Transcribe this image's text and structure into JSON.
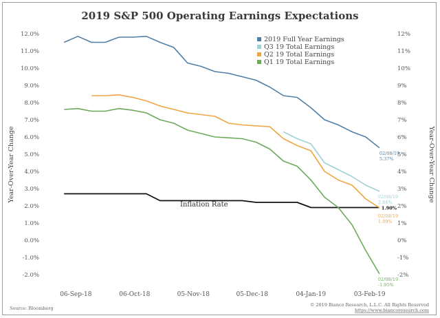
{
  "chart_data": {
    "type": "line",
    "title": "2019 S&P 500 Operating Earnings Expectations",
    "ylabel_left": "Year-Over-Year Change",
    "ylabel_right": "Year-Over-Year Change",
    "x_tick_labels": [
      "06-Sep-18",
      "06-Oct-18",
      "05-Nov-18",
      "05-Dec-18",
      "04-Jan-19",
      "03-Feb-19"
    ],
    "x_tick_dates": [
      "2018-09-06",
      "2018-10-06",
      "2018-11-05",
      "2018-12-05",
      "2019-01-04",
      "2019-02-03"
    ],
    "y_tick_labels_left": [
      "12.0%",
      "11.0%",
      "10.0%",
      "9.0%",
      "8.0%",
      "7.0%",
      "6.0%",
      "5.0%",
      "4.0%",
      "3.0%",
      "2.0%",
      "1.0%",
      "0.0%",
      "-1.0%",
      "-2.0%"
    ],
    "y_tick_labels_right": [
      "12%",
      "11%",
      "10%",
      "9%",
      "8%",
      "7%",
      "6%",
      "5%",
      "4%",
      "3%",
      "2%",
      "1%",
      "0%",
      "-1%",
      "-2%"
    ],
    "ylim": [
      -2.6,
      12.2
    ],
    "xlim": [
      "2018-08-26",
      "2019-02-14"
    ],
    "grid": false,
    "legend_position": "top-right",
    "series": [
      {
        "name": "2019 Full Year Earnings",
        "color": "#4f7fa8",
        "points": [
          [
            "2018-08-31",
            11.5
          ],
          [
            "2018-09-07",
            11.85
          ],
          [
            "2018-09-14",
            11.5
          ],
          [
            "2018-09-21",
            11.5
          ],
          [
            "2018-09-28",
            11.8
          ],
          [
            "2018-10-05",
            11.8
          ],
          [
            "2018-10-12",
            11.85
          ],
          [
            "2018-10-19",
            11.5
          ],
          [
            "2018-10-26",
            11.2
          ],
          [
            "2018-11-02",
            10.3
          ],
          [
            "2018-11-09",
            10.1
          ],
          [
            "2018-11-16",
            9.8
          ],
          [
            "2018-11-23",
            9.7
          ],
          [
            "2018-11-30",
            9.5
          ],
          [
            "2018-12-07",
            9.3
          ],
          [
            "2018-12-14",
            8.9
          ],
          [
            "2018-12-21",
            8.4
          ],
          [
            "2018-12-28",
            8.3
          ],
          [
            "2019-01-04",
            7.7
          ],
          [
            "2019-01-11",
            7.0
          ],
          [
            "2019-01-18",
            6.7
          ],
          [
            "2019-01-25",
            6.3
          ],
          [
            "2019-02-01",
            6.0
          ],
          [
            "2019-02-08",
            5.37
          ]
        ]
      },
      {
        "name": "Q3 19 Total Earnings",
        "color": "#9ed0d6",
        "points": [
          [
            "2018-12-21",
            6.3
          ],
          [
            "2018-12-28",
            5.9
          ],
          [
            "2019-01-04",
            5.6
          ],
          [
            "2019-01-11",
            4.5
          ],
          [
            "2019-01-18",
            4.1
          ],
          [
            "2019-01-25",
            3.7
          ],
          [
            "2019-02-01",
            3.2
          ],
          [
            "2019-02-08",
            2.84
          ]
        ]
      },
      {
        "name": "Q2 19 Total Earnings",
        "color": "#f0a545",
        "points": [
          [
            "2018-09-14",
            8.4
          ],
          [
            "2018-09-21",
            8.4
          ],
          [
            "2018-09-28",
            8.45
          ],
          [
            "2018-10-05",
            8.3
          ],
          [
            "2018-10-12",
            8.1
          ],
          [
            "2018-10-19",
            7.8
          ],
          [
            "2018-10-26",
            7.6
          ],
          [
            "2018-11-02",
            7.4
          ],
          [
            "2018-11-09",
            7.3
          ],
          [
            "2018-11-16",
            7.2
          ],
          [
            "2018-11-23",
            6.8
          ],
          [
            "2018-11-30",
            6.7
          ],
          [
            "2018-12-07",
            6.65
          ],
          [
            "2018-12-14",
            6.6
          ],
          [
            "2018-12-21",
            5.9
          ],
          [
            "2018-12-28",
            5.5
          ],
          [
            "2019-01-04",
            5.2
          ],
          [
            "2019-01-11",
            4.0
          ],
          [
            "2019-01-18",
            3.5
          ],
          [
            "2019-01-25",
            3.2
          ],
          [
            "2019-02-01",
            2.4
          ],
          [
            "2019-02-08",
            1.89
          ]
        ]
      },
      {
        "name": "Q1 19 Total Earnings",
        "color": "#6aab5a",
        "points": [
          [
            "2018-08-31",
            7.6
          ],
          [
            "2018-09-07",
            7.65
          ],
          [
            "2018-09-14",
            7.5
          ],
          [
            "2018-09-21",
            7.5
          ],
          [
            "2018-09-28",
            7.65
          ],
          [
            "2018-10-05",
            7.55
          ],
          [
            "2018-10-12",
            7.4
          ],
          [
            "2018-10-19",
            7.0
          ],
          [
            "2018-10-26",
            6.8
          ],
          [
            "2018-11-02",
            6.4
          ],
          [
            "2018-11-09",
            6.2
          ],
          [
            "2018-11-16",
            6.0
          ],
          [
            "2018-11-23",
            5.95
          ],
          [
            "2018-11-30",
            5.9
          ],
          [
            "2018-12-07",
            5.7
          ],
          [
            "2018-12-14",
            5.3
          ],
          [
            "2018-12-21",
            4.6
          ],
          [
            "2018-12-28",
            4.3
          ],
          [
            "2019-01-04",
            3.5
          ],
          [
            "2019-01-11",
            2.5
          ],
          [
            "2019-01-18",
            1.9
          ],
          [
            "2019-01-25",
            0.9
          ],
          [
            "2019-02-01",
            -0.6
          ],
          [
            "2019-02-08",
            -1.95
          ]
        ]
      },
      {
        "name": "Inflation Rate",
        "color": "#111111",
        "points": [
          [
            "2018-08-31",
            2.7
          ],
          [
            "2018-10-12",
            2.7
          ],
          [
            "2018-10-19",
            2.3
          ],
          [
            "2018-11-30",
            2.3
          ],
          [
            "2018-12-07",
            2.2
          ],
          [
            "2018-12-28",
            2.2
          ],
          [
            "2019-01-04",
            1.9
          ],
          [
            "2019-02-08",
            1.9
          ]
        ]
      }
    ],
    "annotations": {
      "inflation_label": "Inflation Rate",
      "endpoint_labels": [
        {
          "series": "2019 Full Year Earnings",
          "date": "02/08/19",
          "value": "5.37%"
        },
        {
          "series": "Q3 19 Total Earnings",
          "date": "02/08/19",
          "value": "2.84%"
        },
        {
          "series": "Inflation Rate",
          "date": "",
          "value": "1.90%"
        },
        {
          "series": "Q2 19 Total Earnings",
          "date": "02/08/19",
          "value": "1.89%"
        },
        {
          "series": "Q1 19 Total Earnings",
          "date": "02/08/19",
          "value": "-1.95%"
        }
      ]
    }
  },
  "footer": {
    "source": "Source: Bloomberg",
    "copyright": "© 2019 Bianco Research, L.L.C. All Rights Reserved",
    "url": "https://www.biancoresearch.com"
  }
}
